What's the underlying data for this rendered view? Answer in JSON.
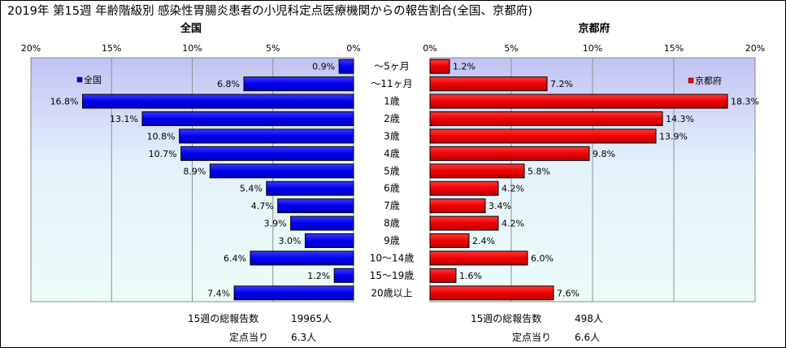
{
  "chart_data": {
    "type": "bar",
    "title": "2019年 第15週 年齢階級別 感染性胃腸炎患者の小児科定点医療機関からの報告割合(全国、京都府)",
    "categories": [
      "～5ヶ月",
      "～11ヶ月",
      "1歳",
      "2歳",
      "3歳",
      "4歳",
      "5歳",
      "6歳",
      "7歳",
      "8歳",
      "9歳",
      "10～14歳",
      "15～19歳",
      "20歳以上"
    ],
    "xlim": [
      0,
      20
    ],
    "tick_labels": [
      "0%",
      "5%",
      "10%",
      "15%",
      "20%"
    ],
    "grid": true,
    "panels": [
      {
        "name": "全国",
        "heading": "全国",
        "legend": "全国",
        "legend_position": "top-left",
        "color": "#0000ff",
        "values": [
          0.9,
          6.8,
          16.8,
          13.1,
          10.8,
          10.7,
          8.9,
          5.4,
          4.7,
          3.9,
          3.0,
          6.4,
          1.2,
          7.4
        ],
        "value_labels": [
          "0.9%",
          "6.8%",
          "16.8%",
          "13.1%",
          "10.8%",
          "10.7%",
          "8.9%",
          "5.4%",
          "4.7%",
          "3.9%",
          "3.0%",
          "6.4%",
          "1.2%",
          "7.4%"
        ],
        "total_label": "15週の総報告数",
        "total_value": "19965人",
        "per_label": "定点当り",
        "per_value": "6.3人"
      },
      {
        "name": "京都府",
        "heading": "京都府",
        "legend": "京都府",
        "legend_position": "top-right",
        "color": "#ff0000",
        "values": [
          1.2,
          7.2,
          18.3,
          14.3,
          13.9,
          9.8,
          5.8,
          4.2,
          3.4,
          4.2,
          2.4,
          6.0,
          1.6,
          7.6
        ],
        "value_labels": [
          "1.2%",
          "7.2%",
          "18.3%",
          "14.3%",
          "13.9%",
          "9.8%",
          "5.8%",
          "4.2%",
          "3.4%",
          "4.2%",
          "2.4%",
          "6.0%",
          "1.6%",
          "7.6%"
        ],
        "total_label": "15週の総報告数",
        "total_value": "498人",
        "per_label": "定点当り",
        "per_value": "6.6人"
      }
    ]
  }
}
